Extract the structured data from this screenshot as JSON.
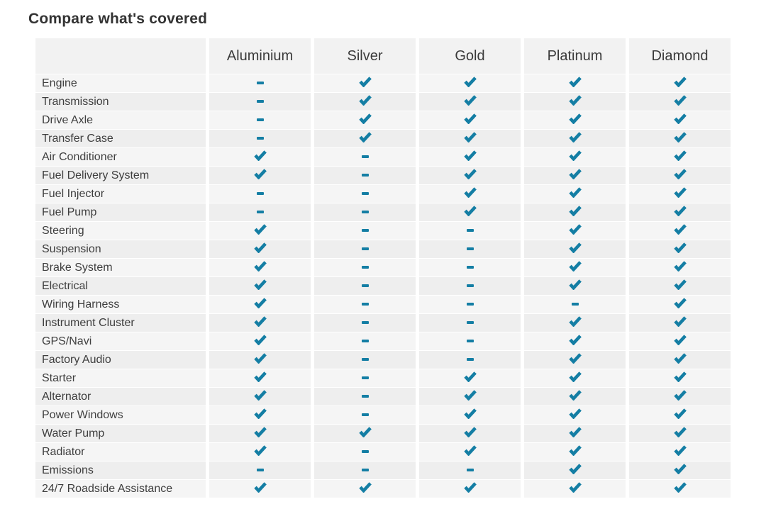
{
  "title": "Compare what's covered",
  "colors": {
    "accent": "#147ea4",
    "header_bg": "#f2f2f2",
    "row_odd": "#f5f5f5",
    "row_even": "#eeeeee",
    "label_text": "#3e3e3e",
    "header_text": "#3a3a3a"
  },
  "icons": {
    "covered": "check-icon",
    "not_covered": "dash-icon"
  },
  "table": {
    "tiers": [
      "Aluminium",
      "Silver",
      "Gold",
      "Platinum",
      "Diamond"
    ],
    "rows": [
      {
        "label": "Engine",
        "covered": [
          false,
          true,
          true,
          true,
          true
        ]
      },
      {
        "label": "Transmission",
        "covered": [
          false,
          true,
          true,
          true,
          true
        ]
      },
      {
        "label": "Drive Axle",
        "covered": [
          false,
          true,
          true,
          true,
          true
        ]
      },
      {
        "label": "Transfer Case",
        "covered": [
          false,
          true,
          true,
          true,
          true
        ]
      },
      {
        "label": "Air Conditioner",
        "covered": [
          true,
          false,
          true,
          true,
          true
        ]
      },
      {
        "label": "Fuel Delivery System",
        "covered": [
          true,
          false,
          true,
          true,
          true
        ]
      },
      {
        "label": "Fuel Injector",
        "covered": [
          false,
          false,
          true,
          true,
          true
        ]
      },
      {
        "label": "Fuel Pump",
        "covered": [
          false,
          false,
          true,
          true,
          true
        ]
      },
      {
        "label": "Steering",
        "covered": [
          true,
          false,
          false,
          true,
          true
        ]
      },
      {
        "label": "Suspension",
        "covered": [
          true,
          false,
          false,
          true,
          true
        ]
      },
      {
        "label": "Brake System",
        "covered": [
          true,
          false,
          false,
          true,
          true
        ]
      },
      {
        "label": "Electrical",
        "covered": [
          true,
          false,
          false,
          true,
          true
        ]
      },
      {
        "label": "Wiring Harness",
        "covered": [
          true,
          false,
          false,
          false,
          true
        ]
      },
      {
        "label": "Instrument Cluster",
        "covered": [
          true,
          false,
          false,
          true,
          true
        ]
      },
      {
        "label": "GPS/Navi",
        "covered": [
          true,
          false,
          false,
          true,
          true
        ]
      },
      {
        "label": "Factory Audio",
        "covered": [
          true,
          false,
          false,
          true,
          true
        ]
      },
      {
        "label": "Starter",
        "covered": [
          true,
          false,
          true,
          true,
          true
        ]
      },
      {
        "label": "Alternator",
        "covered": [
          true,
          false,
          true,
          true,
          true
        ]
      },
      {
        "label": "Power Windows",
        "covered": [
          true,
          false,
          true,
          true,
          true
        ]
      },
      {
        "label": "Water Pump",
        "covered": [
          true,
          true,
          true,
          true,
          true
        ]
      },
      {
        "label": "Radiator",
        "covered": [
          true,
          false,
          true,
          true,
          true
        ]
      },
      {
        "label": "Emissions",
        "covered": [
          false,
          false,
          false,
          true,
          true
        ]
      },
      {
        "label": "24/7 Roadside Assistance",
        "covered": [
          true,
          true,
          true,
          true,
          true
        ]
      }
    ]
  }
}
